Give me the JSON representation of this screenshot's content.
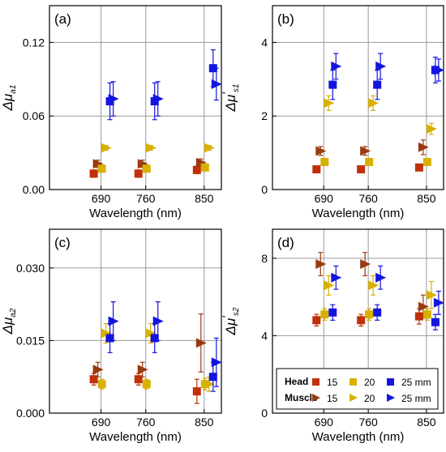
{
  "colors": {
    "head15": "#c0300a",
    "muscle15": "#9b3a12",
    "l20": "#d8b000",
    "l25": "#1414e0",
    "grid": "#9a9a9a",
    "axis": "#000000"
  },
  "legend": {
    "head_label": "Head",
    "muscle_label": "Muscle",
    "entries": [
      {
        "text": "15",
        "color_key": "head15",
        "row": "head",
        "marker": "square"
      },
      {
        "text": "20",
        "color_key": "l20",
        "row": "head",
        "marker": "square"
      },
      {
        "text": "25 mm",
        "color_key": "l25",
        "row": "head",
        "marker": "square"
      },
      {
        "text": "15",
        "color_key": "muscle15",
        "row": "muscle",
        "marker": "triangle"
      },
      {
        "text": "20",
        "color_key": "l20",
        "row": "muscle",
        "marker": "triangle"
      },
      {
        "text": "25 mm",
        "color_key": "l25",
        "row": "muscle",
        "marker": "triangle"
      }
    ]
  },
  "chart_data": [
    {
      "type": "scatter",
      "panel": "(a)",
      "xlabel": "Wavelength (nm)",
      "ylabel_main": "Δμ",
      "ylabel_sub": "a1",
      "ylabel_prime": "",
      "categories": [
        "690",
        "760",
        "850"
      ],
      "yticks": [
        "0.00",
        "0.06",
        "0.12"
      ],
      "ylim": [
        0,
        0.15
      ],
      "grid": true,
      "series": [
        {
          "group": "head",
          "depth": "15",
          "marker": "square",
          "color_key": "head15",
          "values": [
            0.013,
            0.013,
            0.016
          ],
          "errors": [
            0.003,
            0.003,
            0.003
          ]
        },
        {
          "group": "muscle",
          "depth": "15",
          "marker": "triangle",
          "color_key": "muscle15",
          "values": [
            0.021,
            0.021,
            0.022
          ],
          "errors": [
            0.003,
            0.003,
            0.003
          ]
        },
        {
          "group": "head",
          "depth": "20",
          "marker": "square",
          "color_key": "l20",
          "values": [
            0.017,
            0.017,
            0.018
          ],
          "errors": [
            0.002,
            0.002,
            0.002
          ]
        },
        {
          "group": "muscle",
          "depth": "20",
          "marker": "triangle",
          "color_key": "l20",
          "values": [
            0.034,
            0.034,
            0.034
          ],
          "errors": [
            0.002,
            0.002,
            0.002
          ]
        },
        {
          "group": "head",
          "depth": "25",
          "marker": "square",
          "color_key": "l25",
          "values": [
            0.072,
            0.072,
            0.099
          ],
          "errors": [
            0.015,
            0.015,
            0.015
          ]
        },
        {
          "group": "muscle",
          "depth": "25",
          "marker": "triangle",
          "color_key": "l25",
          "values": [
            0.074,
            0.074,
            0.086
          ],
          "errors": [
            0.014,
            0.014,
            0.013
          ]
        }
      ]
    },
    {
      "type": "scatter",
      "panel": "(b)",
      "xlabel": "Wavelength (nm)",
      "ylabel_main": "Δμ",
      "ylabel_sub": "s1",
      "ylabel_prime": "′",
      "categories": [
        "690",
        "760",
        "850"
      ],
      "yticks": [
        "0",
        "2",
        "4"
      ],
      "ylim": [
        0,
        5
      ],
      "grid": true,
      "series": [
        {
          "group": "head",
          "depth": "15",
          "marker": "square",
          "color_key": "head15",
          "values": [
            0.55,
            0.55,
            0.6
          ],
          "errors": [
            0.08,
            0.08,
            0.08
          ]
        },
        {
          "group": "muscle",
          "depth": "15",
          "marker": "triangle",
          "color_key": "muscle15",
          "values": [
            1.05,
            1.05,
            1.15
          ],
          "errors": [
            0.12,
            0.12,
            0.2
          ]
        },
        {
          "group": "head",
          "depth": "20",
          "marker": "square",
          "color_key": "l20",
          "values": [
            0.75,
            0.75,
            0.75
          ],
          "errors": [
            0.08,
            0.08,
            0.08
          ]
        },
        {
          "group": "muscle",
          "depth": "20",
          "marker": "triangle",
          "color_key": "l20",
          "values": [
            2.35,
            2.35,
            1.65
          ],
          "errors": [
            0.2,
            0.2,
            0.15
          ]
        },
        {
          "group": "head",
          "depth": "25",
          "marker": "square",
          "color_key": "l25",
          "values": [
            2.85,
            2.85,
            3.25
          ],
          "errors": [
            0.4,
            0.4,
            0.35
          ]
        },
        {
          "group": "muscle",
          "depth": "25",
          "marker": "triangle",
          "color_key": "l25",
          "values": [
            3.35,
            3.35,
            3.25
          ],
          "errors": [
            0.35,
            0.35,
            0.3
          ]
        }
      ]
    },
    {
      "type": "scatter",
      "panel": "(c)",
      "xlabel": "Wavelength (nm)",
      "ylabel_main": "Δμ",
      "ylabel_sub": "a2",
      "ylabel_prime": "",
      "categories": [
        "690",
        "760",
        "850"
      ],
      "yticks": [
        "0.000",
        "0.015",
        "0.030"
      ],
      "ylim": [
        0,
        0.038
      ],
      "grid": true,
      "series": [
        {
          "group": "head",
          "depth": "15",
          "marker": "square",
          "color_key": "head15",
          "values": [
            0.007,
            0.007,
            0.0045
          ],
          "errors": [
            0.0012,
            0.0012,
            0.0025
          ]
        },
        {
          "group": "muscle",
          "depth": "15",
          "marker": "triangle",
          "color_key": "muscle15",
          "values": [
            0.009,
            0.009,
            0.0145
          ],
          "errors": [
            0.0015,
            0.0015,
            0.006
          ]
        },
        {
          "group": "head",
          "depth": "20",
          "marker": "square",
          "color_key": "l20",
          "values": [
            0.006,
            0.006,
            0.006
          ],
          "errors": [
            0.001,
            0.001,
            0.0012
          ]
        },
        {
          "group": "muscle",
          "depth": "20",
          "marker": "triangle",
          "color_key": "l20",
          "values": [
            0.0165,
            0.0165,
            0.006
          ],
          "errors": [
            0.002,
            0.002,
            0.0015
          ]
        },
        {
          "group": "head",
          "depth": "25",
          "marker": "square",
          "color_key": "l25",
          "values": [
            0.0155,
            0.0155,
            0.0075
          ],
          "errors": [
            0.003,
            0.003,
            0.003
          ]
        },
        {
          "group": "muscle",
          "depth": "25",
          "marker": "triangle",
          "color_key": "l25",
          "values": [
            0.019,
            0.019,
            0.0105
          ],
          "errors": [
            0.004,
            0.004,
            0.005
          ]
        }
      ]
    },
    {
      "type": "scatter",
      "panel": "(d)",
      "xlabel": "Wavelength (nm)",
      "ylabel_main": "Δμ",
      "ylabel_sub": "s2",
      "ylabel_prime": "′",
      "categories": [
        "690",
        "760",
        "850"
      ],
      "yticks": [
        "0",
        "4",
        "8"
      ],
      "ylim": [
        0,
        9.5
      ],
      "grid": true,
      "series": [
        {
          "group": "head",
          "depth": "15",
          "marker": "square",
          "color_key": "head15",
          "values": [
            4.8,
            4.8,
            5.0
          ],
          "errors": [
            0.3,
            0.3,
            0.4
          ]
        },
        {
          "group": "muscle",
          "depth": "15",
          "marker": "triangle",
          "color_key": "muscle15",
          "values": [
            7.7,
            7.7,
            5.5
          ],
          "errors": [
            0.6,
            0.6,
            0.6
          ]
        },
        {
          "group": "head",
          "depth": "20",
          "marker": "square",
          "color_key": "l20",
          "values": [
            5.1,
            5.1,
            5.1
          ],
          "errors": [
            0.3,
            0.3,
            0.3
          ]
        },
        {
          "group": "muscle",
          "depth": "20",
          "marker": "triangle",
          "color_key": "l20",
          "values": [
            6.6,
            6.6,
            6.1
          ],
          "errors": [
            0.5,
            0.5,
            0.7
          ]
        },
        {
          "group": "head",
          "depth": "25",
          "marker": "square",
          "color_key": "l25",
          "values": [
            5.2,
            5.2,
            4.7
          ],
          "errors": [
            0.4,
            0.4,
            0.4
          ]
        },
        {
          "group": "muscle",
          "depth": "25",
          "marker": "triangle",
          "color_key": "l25",
          "values": [
            7.0,
            7.0,
            5.7
          ],
          "errors": [
            0.6,
            0.6,
            0.6
          ]
        }
      ]
    }
  ]
}
